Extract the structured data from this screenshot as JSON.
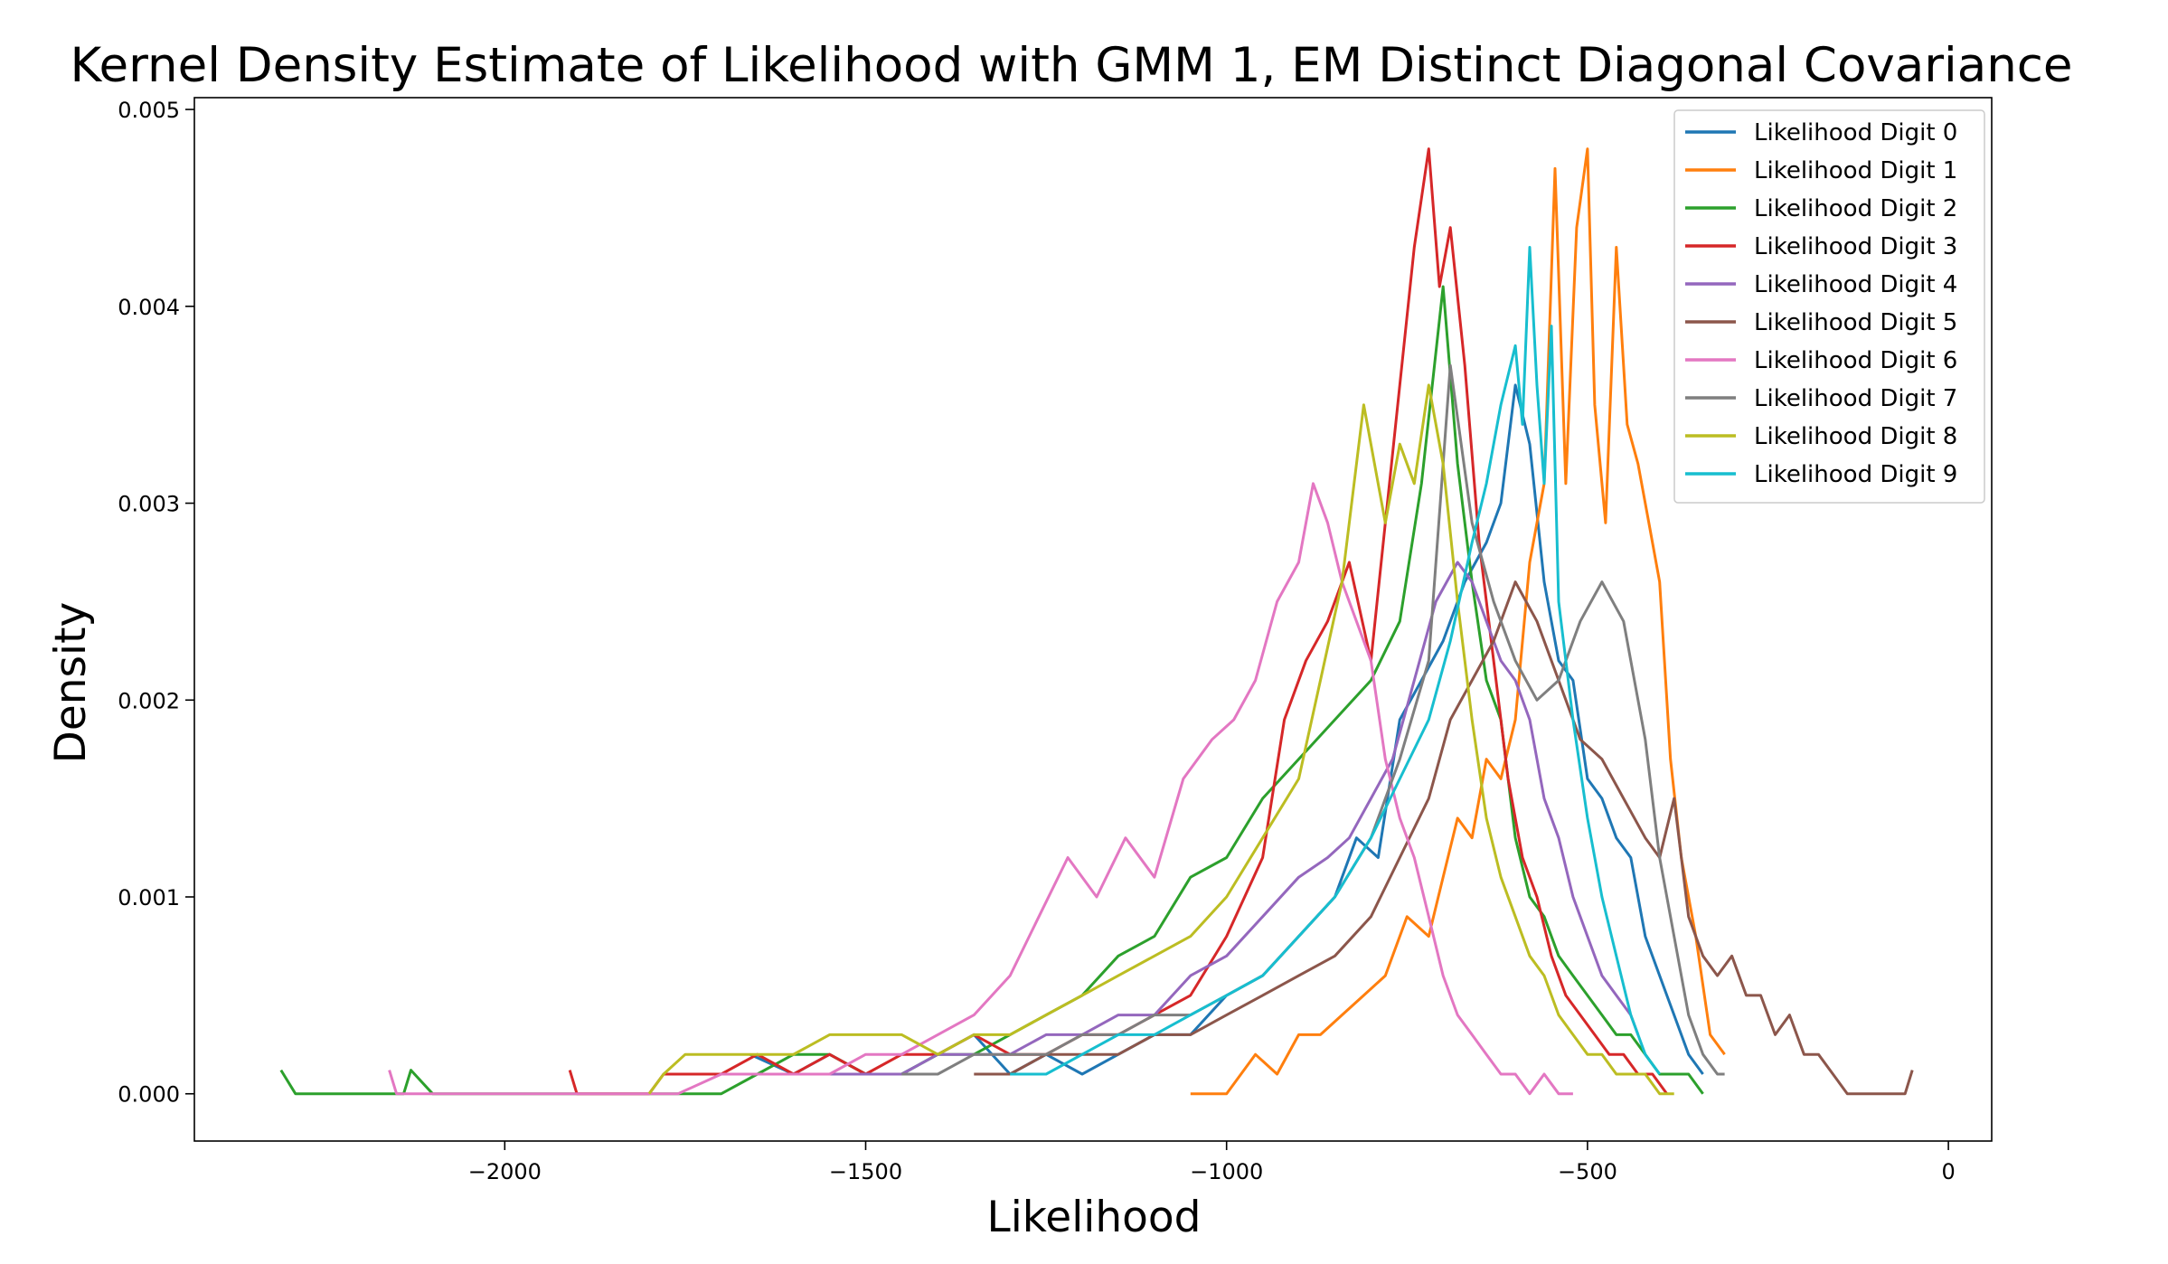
{
  "chart_data": {
    "type": "line",
    "title": "Kernel Density Estimate of Likelihood with GMM 1, EM Distinct Diagonal Covariance",
    "xlabel": "Likelihood",
    "ylabel": "Density",
    "xlim": [
      -2430,
      60
    ],
    "ylim": [
      -0.00024,
      0.00506
    ],
    "xticks": [
      -2000,
      -1500,
      -1000,
      -500,
      0
    ],
    "xtick_labels": [
      "−2000",
      "−1500",
      "−1000",
      "−500",
      "0"
    ],
    "yticks": [
      0.0,
      0.001,
      0.002,
      0.003,
      0.004,
      0.005
    ],
    "ytick_labels": [
      "0.000",
      "0.001",
      "0.002",
      "0.003",
      "0.004",
      "0.005"
    ],
    "legend_position": "top-right",
    "grid": false,
    "series": [
      {
        "name": "Likelihood Digit 0",
        "color": "#1f77b4",
        "x": [
          -1660,
          -1600,
          -1550,
          -1500,
          -1450,
          -1400,
          -1350,
          -1300,
          -1250,
          -1200,
          -1150,
          -1100,
          -1050,
          -1000,
          -950,
          -900,
          -850,
          -820,
          -790,
          -760,
          -730,
          -700,
          -670,
          -640,
          -620,
          -600,
          -580,
          -560,
          -540,
          -520,
          -500,
          -480,
          -460,
          -440,
          -420,
          -400,
          -380,
          -360,
          -340
        ],
        "y": [
          0.0002,
          0.0001,
          0.0002,
          0.0001,
          0.0001,
          0.0002,
          0.0003,
          0.0001,
          0.0002,
          0.0001,
          0.0002,
          0.0003,
          0.0003,
          0.0005,
          0.0006,
          0.0008,
          0.001,
          0.0013,
          0.0012,
          0.0019,
          0.0021,
          0.0023,
          0.0026,
          0.0028,
          0.003,
          0.0036,
          0.0033,
          0.0026,
          0.0022,
          0.0021,
          0.0016,
          0.0015,
          0.0013,
          0.0012,
          0.0008,
          0.0006,
          0.0004,
          0.0002,
          0.0001
        ]
      },
      {
        "name": "Likelihood Digit 1",
        "color": "#ff7f0e",
        "x": [
          -1050,
          -1000,
          -960,
          -930,
          -900,
          -870,
          -840,
          -810,
          -780,
          -750,
          -720,
          -700,
          -680,
          -660,
          -640,
          -620,
          -600,
          -580,
          -560,
          -545,
          -530,
          -515,
          -500,
          -490,
          -475,
          -460,
          -445,
          -430,
          -415,
          -400,
          -385,
          -370,
          -350,
          -330,
          -310
        ],
        "y": [
          0.0,
          0.0,
          0.0002,
          0.0001,
          0.0003,
          0.0003,
          0.0004,
          0.0005,
          0.0006,
          0.0009,
          0.0008,
          0.0011,
          0.0014,
          0.0013,
          0.0017,
          0.0016,
          0.0019,
          0.0027,
          0.0031,
          0.0047,
          0.0031,
          0.0044,
          0.0048,
          0.0035,
          0.0029,
          0.0043,
          0.0034,
          0.0032,
          0.0029,
          0.0026,
          0.0017,
          0.0012,
          0.0008,
          0.0003,
          0.0002
        ]
      },
      {
        "name": "Likelihood Digit 2",
        "color": "#2ca02c",
        "x": [
          -2310,
          -2290,
          -2270,
          -2200,
          -2160,
          -2140,
          -2130,
          -2100,
          -2000,
          -1900,
          -1800,
          -1700,
          -1650,
          -1600,
          -1550,
          -1500,
          -1450,
          -1400,
          -1350,
          -1300,
          -1250,
          -1200,
          -1150,
          -1100,
          -1050,
          -1000,
          -950,
          -900,
          -850,
          -800,
          -760,
          -730,
          -700,
          -680,
          -660,
          -640,
          -620,
          -600,
          -580,
          -560,
          -540,
          -520,
          -500,
          -480,
          -460,
          -440,
          -420,
          -400,
          -380,
          -360,
          -340
        ],
        "y": [
          0.00012,
          0.0,
          0.0,
          0.0,
          0.0,
          0.0,
          0.00012,
          0.0,
          0.0,
          0.0,
          0.0,
          0.0,
          0.0001,
          0.0002,
          0.0002,
          0.0001,
          0.0001,
          0.0002,
          0.0002,
          0.0003,
          0.0004,
          0.0005,
          0.0007,
          0.0008,
          0.0011,
          0.0012,
          0.0015,
          0.0017,
          0.0019,
          0.0021,
          0.0024,
          0.0031,
          0.0041,
          0.0032,
          0.0026,
          0.0021,
          0.0019,
          0.0013,
          0.001,
          0.0009,
          0.0007,
          0.0006,
          0.0005,
          0.0004,
          0.0003,
          0.0003,
          0.0002,
          0.0001,
          0.0001,
          0.0001,
          0.0
        ]
      },
      {
        "name": "Likelihood Digit 3",
        "color": "#d62728",
        "x": [
          -1910,
          -1900,
          -1880,
          -1800,
          -1780,
          -1750,
          -1700,
          -1650,
          -1600,
          -1550,
          -1500,
          -1450,
          -1400,
          -1350,
          -1300,
          -1250,
          -1200,
          -1150,
          -1100,
          -1050,
          -1000,
          -950,
          -920,
          -890,
          -860,
          -830,
          -800,
          -780,
          -760,
          -740,
          -720,
          -705,
          -690,
          -670,
          -650,
          -630,
          -610,
          -590,
          -570,
          -550,
          -530,
          -510,
          -490,
          -470,
          -450,
          -430,
          -410,
          -390
        ],
        "y": [
          0.00012,
          0.0,
          0.0,
          0.0,
          0.0001,
          0.0001,
          0.0001,
          0.0002,
          0.0001,
          0.0002,
          0.0001,
          0.0002,
          0.0002,
          0.0003,
          0.0002,
          0.0002,
          0.0003,
          0.0003,
          0.0004,
          0.0005,
          0.0008,
          0.0012,
          0.0019,
          0.0022,
          0.0024,
          0.0027,
          0.0022,
          0.0029,
          0.0036,
          0.0043,
          0.0048,
          0.0041,
          0.0044,
          0.0037,
          0.0028,
          0.0022,
          0.0016,
          0.0012,
          0.001,
          0.0007,
          0.0005,
          0.0004,
          0.0003,
          0.0002,
          0.0002,
          0.0001,
          0.0001,
          0.0
        ]
      },
      {
        "name": "Likelihood Digit 4",
        "color": "#9467bd",
        "x": [
          -1600,
          -1550,
          -1500,
          -1450,
          -1400,
          -1350,
          -1300,
          -1250,
          -1200,
          -1150,
          -1100,
          -1050,
          -1000,
          -950,
          -900,
          -860,
          -830,
          -800,
          -770,
          -740,
          -710,
          -680,
          -660,
          -640,
          -620,
          -600,
          -580,
          -560,
          -540,
          -520,
          -500,
          -480,
          -460,
          -440,
          -430
        ],
        "y": [
          0.0001,
          0.0001,
          0.0001,
          0.0001,
          0.0002,
          0.0002,
          0.0002,
          0.0003,
          0.0003,
          0.0004,
          0.0004,
          0.0006,
          0.0007,
          0.0009,
          0.0011,
          0.0012,
          0.0013,
          0.0015,
          0.0017,
          0.0021,
          0.0025,
          0.0027,
          0.0026,
          0.0024,
          0.0022,
          0.0021,
          0.0019,
          0.0015,
          0.0013,
          0.001,
          0.0008,
          0.0006,
          0.0005,
          0.0004,
          0.0003
        ]
      },
      {
        "name": "Likelihood Digit 5",
        "color": "#8c564b",
        "x": [
          -1350,
          -1300,
          -1250,
          -1200,
          -1150,
          -1100,
          -1050,
          -1000,
          -950,
          -900,
          -850,
          -800,
          -760,
          -720,
          -690,
          -660,
          -630,
          -600,
          -570,
          -540,
          -510,
          -480,
          -450,
          -420,
          -400,
          -380,
          -360,
          -340,
          -320,
          -300,
          -280,
          -260,
          -240,
          -220,
          -200,
          -180,
          -160,
          -140,
          -120,
          -100,
          -80,
          -60,
          -50
        ],
        "y": [
          0.0001,
          0.0001,
          0.0002,
          0.0002,
          0.0002,
          0.0003,
          0.0003,
          0.0004,
          0.0005,
          0.0006,
          0.0007,
          0.0009,
          0.0012,
          0.0015,
          0.0019,
          0.0021,
          0.0023,
          0.0026,
          0.0024,
          0.0021,
          0.0018,
          0.0017,
          0.0015,
          0.0013,
          0.0012,
          0.0015,
          0.0009,
          0.0007,
          0.0006,
          0.0007,
          0.0005,
          0.0005,
          0.0003,
          0.0004,
          0.0002,
          0.0002,
          0.0001,
          0.0,
          0.0,
          0.0,
          0.0,
          0.0,
          0.00012
        ]
      },
      {
        "name": "Likelihood Digit 6",
        "color": "#e377c2",
        "x": [
          -2160,
          -2150,
          -2140,
          -2000,
          -1900,
          -1800,
          -1760,
          -1700,
          -1650,
          -1600,
          -1550,
          -1500,
          -1450,
          -1400,
          -1350,
          -1300,
          -1260,
          -1220,
          -1180,
          -1140,
          -1100,
          -1060,
          -1020,
          -990,
          -960,
          -930,
          -900,
          -880,
          -860,
          -840,
          -820,
          -800,
          -780,
          -760,
          -740,
          -720,
          -700,
          -680,
          -660,
          -640,
          -620,
          -600,
          -580,
          -560,
          -540,
          -520
        ],
        "y": [
          0.00012,
          0.0,
          0.0,
          0.0,
          0.0,
          0.0,
          0.0,
          0.0001,
          0.0001,
          0.0001,
          0.0001,
          0.0002,
          0.0002,
          0.0003,
          0.0004,
          0.0006,
          0.0009,
          0.0012,
          0.001,
          0.0013,
          0.0011,
          0.0016,
          0.0018,
          0.0019,
          0.0021,
          0.0025,
          0.0027,
          0.0031,
          0.0029,
          0.0026,
          0.0024,
          0.0022,
          0.0017,
          0.0014,
          0.0012,
          0.0009,
          0.0006,
          0.0004,
          0.0003,
          0.0002,
          0.0001,
          0.0001,
          0.0,
          0.0001,
          0.0,
          0.0
        ]
      },
      {
        "name": "Likelihood Digit 7",
        "color": "#7f7f7f",
        "x": [
          -1450,
          -1400,
          -1350,
          -1300,
          -1250,
          -1200,
          -1150,
          -1100,
          -1050,
          -1000,
          -950,
          -900,
          -850,
          -800,
          -760,
          -720,
          -690,
          -660,
          -630,
          -600,
          -570,
          -540,
          -510,
          -480,
          -450,
          -420,
          -400,
          -380,
          -360,
          -340,
          -320,
          -310
        ],
        "y": [
          0.0001,
          0.0001,
          0.0002,
          0.0002,
          0.0002,
          0.0003,
          0.0003,
          0.0004,
          0.0004,
          0.0005,
          0.0006,
          0.0008,
          0.001,
          0.0013,
          0.0017,
          0.0022,
          0.0037,
          0.0029,
          0.0025,
          0.0022,
          0.002,
          0.0021,
          0.0024,
          0.0026,
          0.0024,
          0.0018,
          0.0012,
          0.0008,
          0.0004,
          0.0002,
          0.0001,
          0.0001
        ]
      },
      {
        "name": "Likelihood Digit 8",
        "color": "#bcbd22",
        "x": [
          -1800,
          -1780,
          -1750,
          -1700,
          -1650,
          -1600,
          -1550,
          -1500,
          -1450,
          -1400,
          -1350,
          -1300,
          -1250,
          -1200,
          -1150,
          -1100,
          -1050,
          -1000,
          -950,
          -900,
          -870,
          -840,
          -810,
          -780,
          -760,
          -740,
          -720,
          -700,
          -680,
          -660,
          -640,
          -620,
          -600,
          -580,
          -560,
          -540,
          -520,
          -500,
          -480,
          -460,
          -440,
          -420,
          -400,
          -380
        ],
        "y": [
          0.0,
          0.0001,
          0.0002,
          0.0002,
          0.0002,
          0.0002,
          0.0003,
          0.0003,
          0.0003,
          0.0002,
          0.0003,
          0.0003,
          0.0004,
          0.0005,
          0.0006,
          0.0007,
          0.0008,
          0.001,
          0.0013,
          0.0016,
          0.0021,
          0.0026,
          0.0035,
          0.0029,
          0.0033,
          0.0031,
          0.0036,
          0.0032,
          0.0025,
          0.0019,
          0.0014,
          0.0011,
          0.0009,
          0.0007,
          0.0006,
          0.0004,
          0.0003,
          0.0002,
          0.0002,
          0.0001,
          0.0001,
          0.0001,
          0.0,
          0.0
        ]
      },
      {
        "name": "Likelihood Digit 9",
        "color": "#17becf",
        "x": [
          -1300,
          -1250,
          -1200,
          -1150,
          -1100,
          -1050,
          -1000,
          -950,
          -900,
          -850,
          -800,
          -760,
          -720,
          -690,
          -660,
          -640,
          -620,
          -600,
          -590,
          -580,
          -570,
          -560,
          -550,
          -540,
          -520,
          -500,
          -480,
          -460,
          -440,
          -420,
          -400
        ],
        "y": [
          0.0001,
          0.0001,
          0.0002,
          0.0003,
          0.0003,
          0.0004,
          0.0005,
          0.0006,
          0.0008,
          0.001,
          0.0013,
          0.0016,
          0.0019,
          0.0023,
          0.0028,
          0.0031,
          0.0035,
          0.0038,
          0.0034,
          0.0043,
          0.0036,
          0.0031,
          0.0039,
          0.0025,
          0.0019,
          0.0014,
          0.001,
          0.0007,
          0.0004,
          0.0002,
          0.0001
        ]
      }
    ]
  }
}
